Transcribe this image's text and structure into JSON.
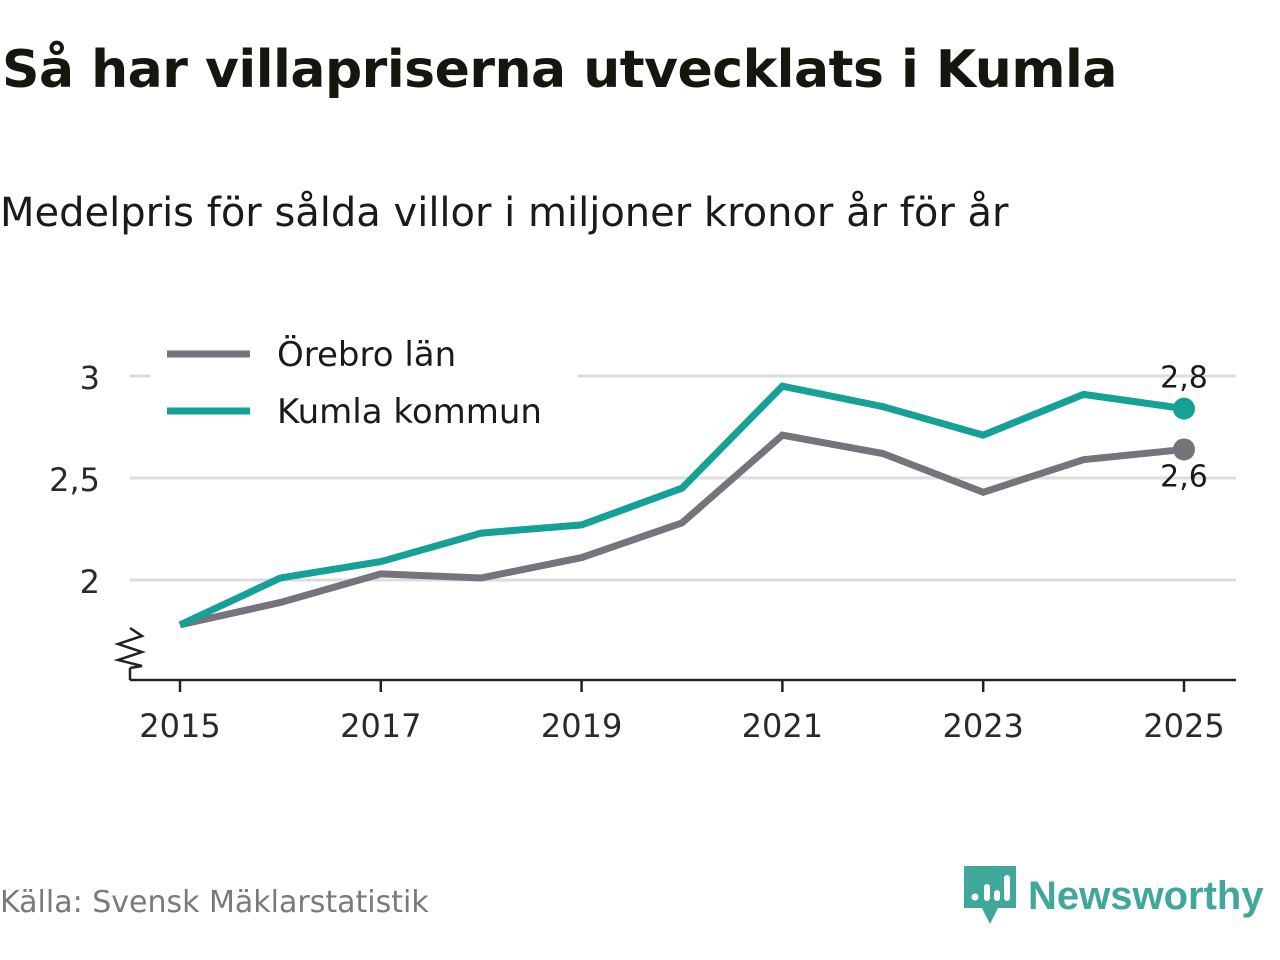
{
  "title": "Så har villapriserna utvecklats i Kumla",
  "subtitle": "Medelpris för sålda villor i miljoner kronor år för år",
  "source": "Källa: Svensk Mäklarstatistik",
  "brand": "Newsworthy",
  "colors": {
    "orebro": "#75737c",
    "kumla": "#15a196",
    "grid": "#dddddd",
    "axis": "#222222",
    "brand": "#3fa89a"
  },
  "chart_data": {
    "type": "line",
    "x": [
      2015,
      2016,
      2017,
      2018,
      2019,
      2020,
      2021,
      2022,
      2023,
      2024,
      2025
    ],
    "xticks": [
      2015,
      2017,
      2019,
      2021,
      2023,
      2025
    ],
    "yticks": [
      2,
      2.5,
      3
    ],
    "ytick_labels": [
      "2",
      "2,5",
      "3"
    ],
    "xlim": [
      2014.75,
      2025.5
    ],
    "ylim": [
      1.52,
      3.24
    ],
    "axis_break": true,
    "legend_position": "top-left",
    "series": [
      {
        "name": "Örebro län",
        "color": "#75737c",
        "values": [
          1.78,
          1.89,
          2.03,
          2.01,
          2.11,
          2.28,
          2.71,
          2.62,
          2.43,
          2.59,
          2.64
        ],
        "end_label": "2,6"
      },
      {
        "name": "Kumla kommun",
        "color": "#15a196",
        "values": [
          1.78,
          2.01,
          2.09,
          2.23,
          2.27,
          2.45,
          2.95,
          2.85,
          2.71,
          2.91,
          2.84
        ],
        "end_label": "2,8"
      }
    ]
  }
}
